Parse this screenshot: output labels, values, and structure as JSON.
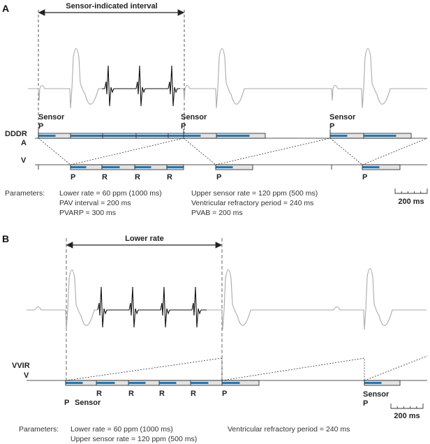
{
  "panel_a": {
    "label": "A",
    "interval_label": "Sensor-indicated interval",
    "mode_label": "DDDR",
    "channel_a": "A",
    "channel_v": "V",
    "sensor_labels": [
      "Sensor",
      "Sensor",
      "Sensor"
    ],
    "a_markers": [
      "P",
      "P",
      "P"
    ],
    "v_markers": [
      "P",
      "R",
      "R",
      "R",
      "P",
      "P"
    ],
    "parameters_label": "Parameters:",
    "parameters": [
      "Lower rate = 60 ppm (1000 ms)",
      "PAV interval = 200 ms",
      "PVARP = 300 ms",
      "Upper sensor rate = 120 ppm (500 ms)",
      "Ventricular refractory period = 240 ms",
      "PVAB = 200 ms"
    ],
    "scale_label": "200 ms"
  },
  "panel_b": {
    "label": "B",
    "interval_label": "Lower rate",
    "mode_label": "VVIR",
    "channel_v": "V",
    "v_markers": [
      "R",
      "R",
      "R",
      "R",
      "P"
    ],
    "first_marker": "P",
    "first_sensor": "Sensor",
    "last_sensor": "Sensor",
    "last_marker": "P",
    "parameters_label": "Parameters:",
    "parameters": [
      "Lower rate = 60 ppm (1000 ms)",
      "Upper sensor rate = 120 ppm (500 ms)",
      "Ventricular refractory period = 240 ms"
    ],
    "scale_label": "200 ms"
  },
  "colors": {
    "refractory_fill": "#1b78b8",
    "box": "#e3e3e3",
    "ecg": "#aaaaaa"
  }
}
